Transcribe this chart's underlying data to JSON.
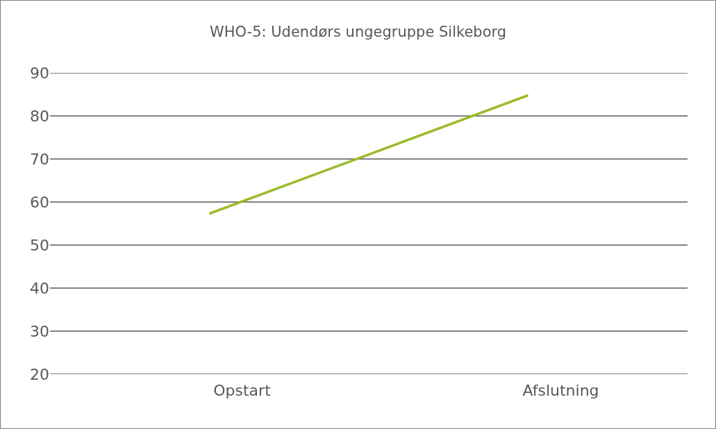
{
  "chart_data": {
    "type": "line",
    "title": "WHO-5: Udendørs ungegruppe Silkeborg",
    "categories": [
      "Opstart",
      "Afslutning"
    ],
    "series": [
      {
        "color": "#9bbb2a",
        "values": [
          57.3,
          84.8
        ]
      }
    ],
    "ylim": [
      20,
      90
    ],
    "yticks": [
      20,
      30,
      40,
      50,
      60,
      70,
      80,
      90
    ],
    "grid": "y",
    "marker": "none",
    "line_style": "solid"
  }
}
